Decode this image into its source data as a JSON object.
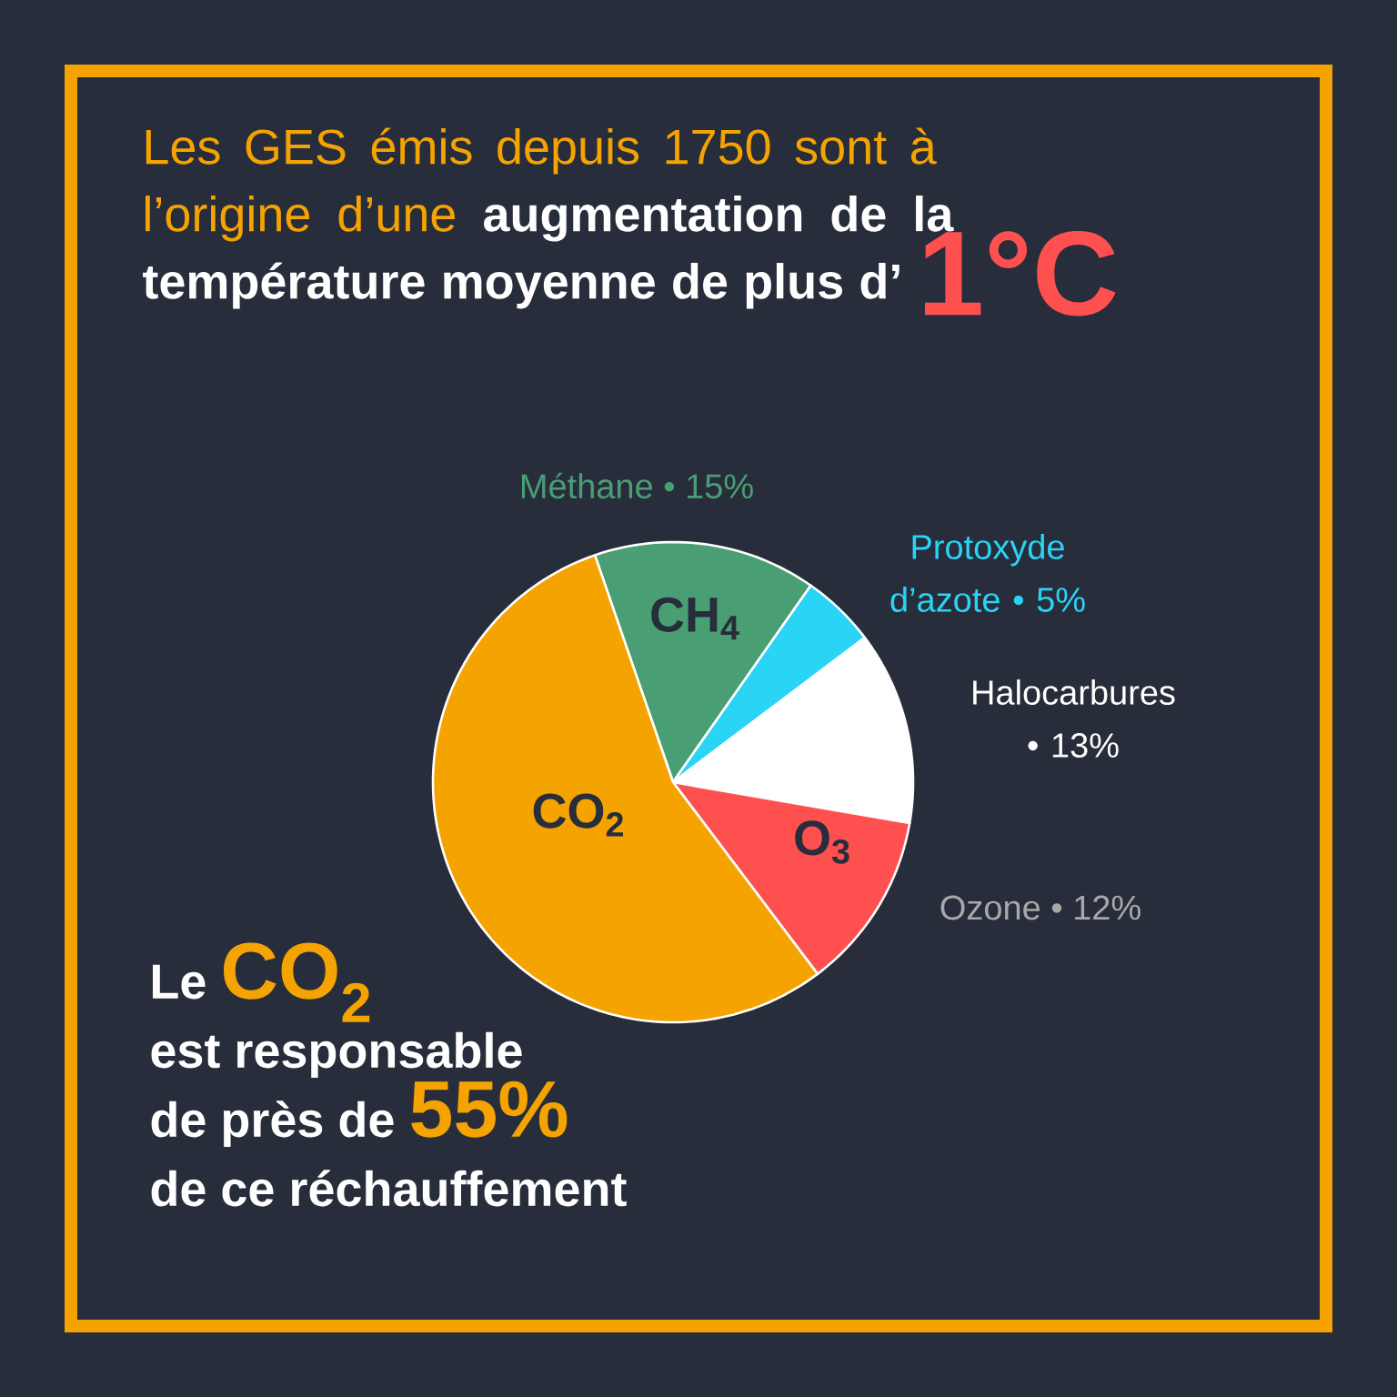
{
  "chart_data": {
    "type": "pie",
    "title": "Les GES émis depuis 1750 sont à l’origine d’une",
    "subtitle": "augmentation de la température moyenne de plus d’",
    "categories": [
      "Méthane",
      "Protoxyde d’azote",
      "Halocarbures",
      "Ozone",
      "CO$_{2}$"
    ],
    "values": [
      15,
      5,
      13,
      12,
      55
    ],
    "value_labels": [
      "• 15%",
      "• 5%",
      "• 13%",
      "• 12%",
      null
    ],
    "colors": [
      "#4a9e74",
      "#2ad4f5",
      "#ffffff",
      "#ff5050",
      "#f5a300"
    ],
    "annotations": [
      "CH$_{4}$",
      "O$_{3}$",
      "1°C",
      "Le",
      "CO$_{2}$",
      "est responsable",
      "de près de",
      "55%",
      "de ce réchauffement"
    ]
  }
}
